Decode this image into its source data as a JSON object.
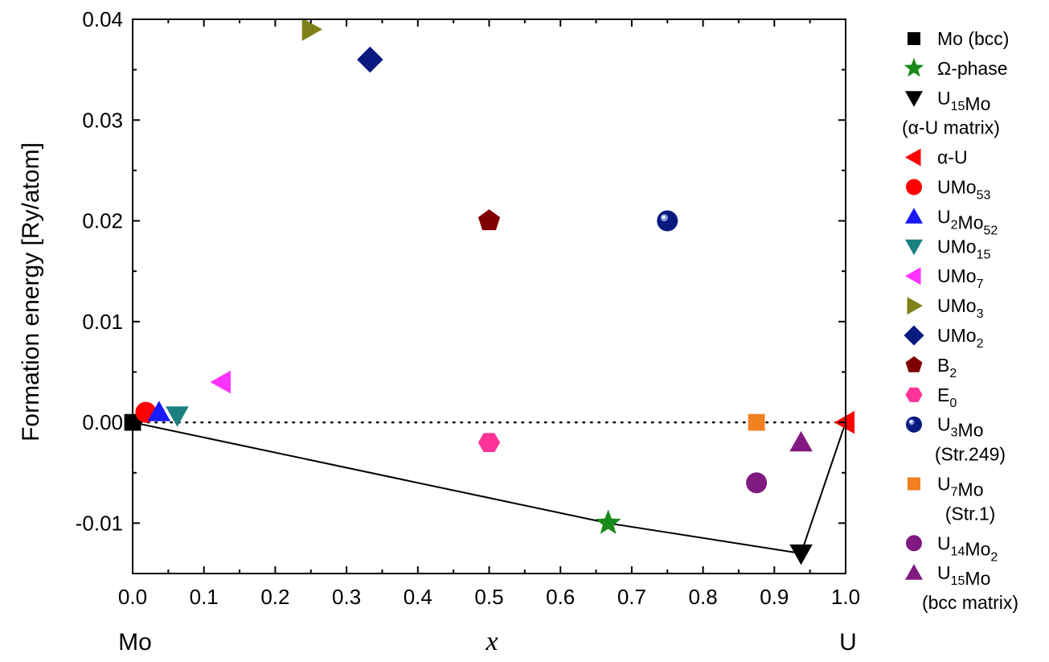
{
  "chart_data": {
    "type": "scatter",
    "xlabel": "x",
    "ylabel": "Formation energy [Ry/atom]",
    "xlim": [
      0.0,
      1.0
    ],
    "ylim": [
      -0.015,
      0.04
    ],
    "x_ticks": [
      "0.0",
      "0.1",
      "0.2",
      "0.3",
      "0.4",
      "0.5",
      "0.6",
      "0.7",
      "0.8",
      "0.9",
      "1.0"
    ],
    "y_ticks": [
      "-0.01",
      "0.00",
      "0.01",
      "0.02",
      "0.03",
      "0.04"
    ],
    "x_end_labels": {
      "left": "Mo",
      "right": "U"
    },
    "grid": false,
    "legend_position": "right",
    "zero_reference_line": "dotted",
    "series": [
      {
        "name": "Mo (bcc)",
        "name_parts": [
          [
            "Mo (bcc)",
            ""
          ]
        ],
        "marker": "square",
        "color": "#000000",
        "x": 0.0,
        "y": 0.0
      },
      {
        "name": "Ω-phase",
        "name_parts": [
          [
            "Ω-phase",
            ""
          ]
        ],
        "marker": "star",
        "color": "#1a8a1a",
        "x": 0.667,
        "y": -0.01
      },
      {
        "name": "U15Mo (α-U matrix)",
        "name_parts": [
          [
            "U",
            ""
          ],
          [
            "15",
            "sub"
          ],
          [
            "Mo",
            ""
          ]
        ],
        "name_line2": "(α-U matrix)",
        "marker": "triangle-down",
        "color": "#000000",
        "x": 0.9375,
        "y": -0.013
      },
      {
        "name": "α-U",
        "name_parts": [
          [
            "α-U",
            ""
          ]
        ],
        "marker": "triangle-left",
        "color": "#ff0000",
        "x": 1.0,
        "y": 0.0
      },
      {
        "name": "UMo53",
        "name_parts": [
          [
            "UMo",
            ""
          ],
          [
            "53",
            "sub"
          ]
        ],
        "marker": "circle",
        "color": "#ff0000",
        "x": 0.0185,
        "y": 0.001
      },
      {
        "name": "U2Mo52",
        "name_parts": [
          [
            "U",
            ""
          ],
          [
            "2",
            "sub"
          ],
          [
            "Mo",
            ""
          ],
          [
            "52",
            "sub"
          ]
        ],
        "marker": "triangle-up",
        "color": "#1a1aff",
        "x": 0.037,
        "y": 0.001
      },
      {
        "name": "UMo15",
        "name_parts": [
          [
            "UMo",
            ""
          ],
          [
            "15",
            "sub"
          ]
        ],
        "marker": "triangle-down",
        "color": "#1a8080",
        "x": 0.0625,
        "y": 0.0007
      },
      {
        "name": "UMo7",
        "name_parts": [
          [
            "UMo",
            ""
          ],
          [
            "7",
            "sub"
          ]
        ],
        "marker": "triangle-left",
        "color": "#ff33ff",
        "x": 0.125,
        "y": 0.004
      },
      {
        "name": "UMo3",
        "name_parts": [
          [
            "UMo",
            ""
          ],
          [
            "3",
            "sub"
          ]
        ],
        "marker": "triangle-right",
        "color": "#80801a",
        "x": 0.25,
        "y": 0.039
      },
      {
        "name": "UMo2",
        "name_parts": [
          [
            "UMo",
            ""
          ],
          [
            "2",
            "sub"
          ]
        ],
        "marker": "diamond",
        "color": "#0a1a80",
        "x": 0.333,
        "y": 0.036
      },
      {
        "name": "B2",
        "name_parts": [
          [
            "B",
            ""
          ],
          [
            "2",
            "sub"
          ]
        ],
        "marker": "pentagon",
        "color": "#800000",
        "x": 0.5,
        "y": 0.02
      },
      {
        "name": "E0",
        "name_parts": [
          [
            "E",
            ""
          ],
          [
            "0",
            "sub"
          ]
        ],
        "marker": "hexagon",
        "color": "#ff3399",
        "x": 0.5,
        "y": -0.002
      },
      {
        "name": "U3Mo (Str.249)",
        "name_parts": [
          [
            "U",
            ""
          ],
          [
            "3",
            "sub"
          ],
          [
            "Mo",
            ""
          ]
        ],
        "name_line2": "(Str.249)",
        "marker": "sphere",
        "color": "#0a1a80",
        "x": 0.75,
        "y": 0.02
      },
      {
        "name": "U7Mo (Str.1)",
        "name_parts": [
          [
            "U",
            ""
          ],
          [
            "7",
            "sub"
          ],
          [
            "Mo",
            ""
          ]
        ],
        "name_line2": "(Str.1)",
        "marker": "square",
        "color": "#f08020",
        "x": 0.875,
        "y": 0.0
      },
      {
        "name": "U14Mo2",
        "name_parts": [
          [
            "U",
            ""
          ],
          [
            "14",
            "sub"
          ],
          [
            "Mo",
            ""
          ],
          [
            "2",
            "sub"
          ]
        ],
        "marker": "circle",
        "color": "#801a80",
        "x": 0.875,
        "y": -0.006
      },
      {
        "name": "U15Mo (bcc matrix)",
        "name_parts": [
          [
            "U",
            ""
          ],
          [
            "15",
            "sub"
          ],
          [
            "Mo",
            ""
          ]
        ],
        "name_line2": "(bcc matrix)",
        "marker": "triangle-up",
        "color": "#801a80",
        "x": 0.9375,
        "y": -0.002
      }
    ],
    "convex_hull": {
      "x": [
        0.0,
        0.667,
        0.9375,
        1.0
      ],
      "y": [
        0.0,
        -0.01,
        -0.013,
        0.0
      ]
    }
  }
}
